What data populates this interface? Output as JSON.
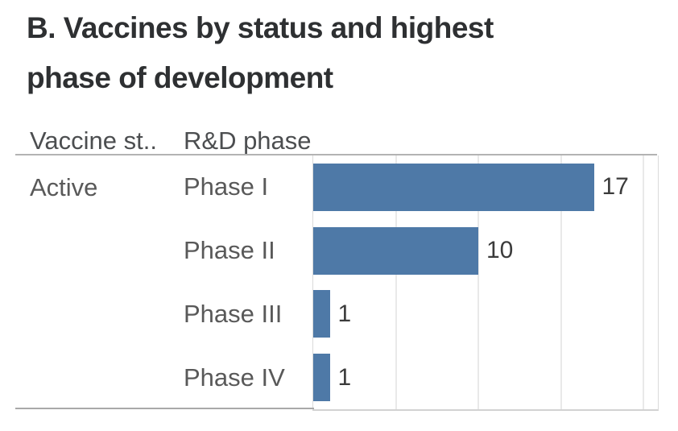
{
  "title_lines": [
    "B. Vaccines by status and highest",
    "phase of development"
  ],
  "columns": {
    "vaccine_status": "Vaccine st..",
    "rd_phase": "R&D phase"
  },
  "chart_data": {
    "type": "bar",
    "orientation": "horizontal",
    "title": "B. Vaccines by status and highest phase of development",
    "row_group": {
      "column": "Vaccine st..",
      "label": "Active"
    },
    "categories": [
      "Phase I",
      "Phase II",
      "Phase III",
      "Phase IV"
    ],
    "values": [
      17,
      10,
      1,
      1
    ],
    "value_labels": [
      "17",
      "10",
      "1",
      "1"
    ],
    "xlim": [
      0,
      21
    ],
    "gridline_values": [
      5,
      10,
      15,
      20
    ],
    "grid": true,
    "legend": "none",
    "bar_color": "#4e79a7"
  }
}
